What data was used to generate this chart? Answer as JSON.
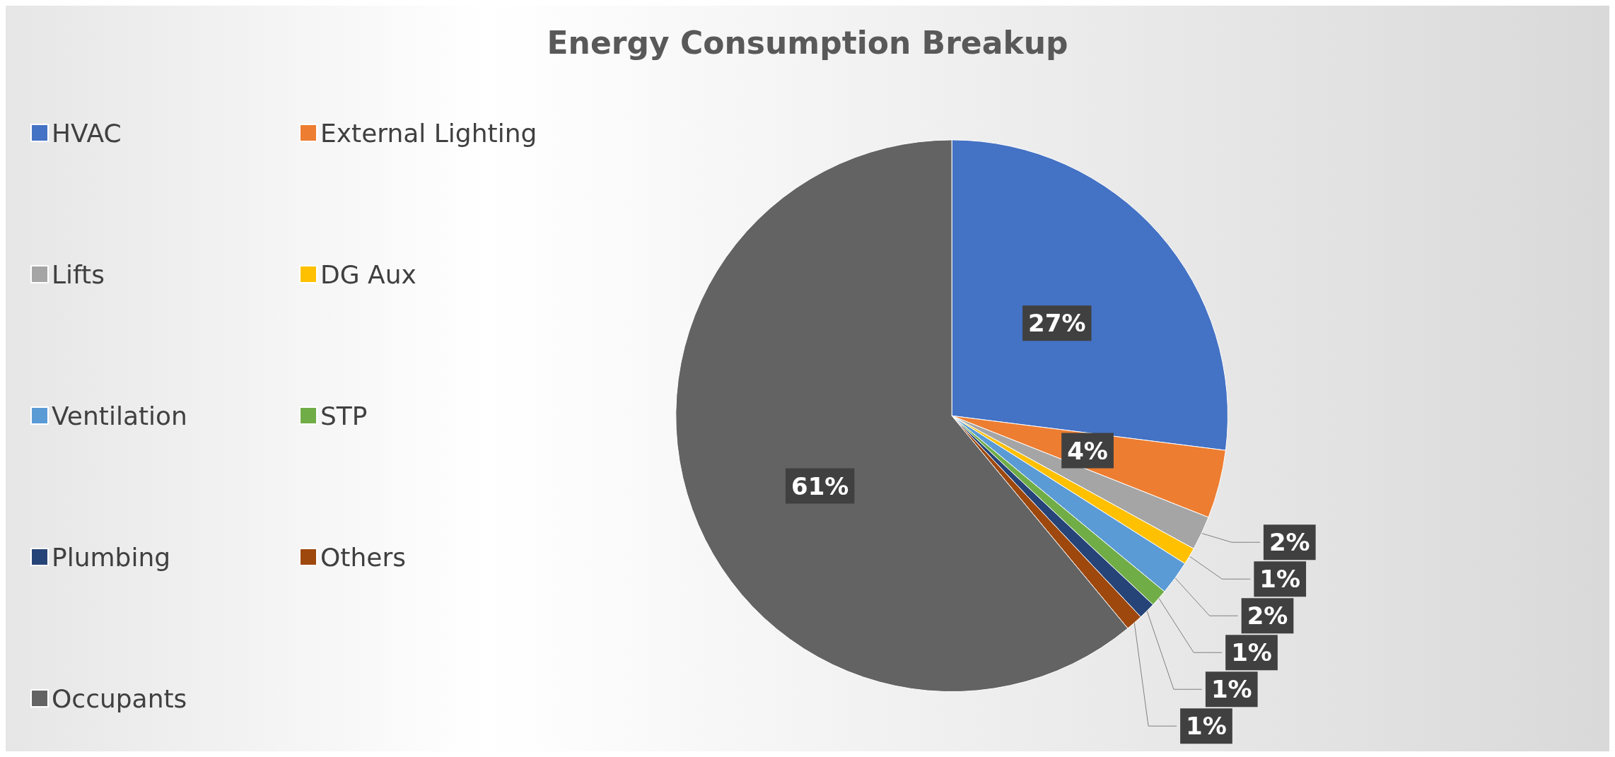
{
  "chart_data": {
    "type": "pie",
    "title": "Energy Consumption Breakup",
    "categories": [
      "HVAC",
      "External Lighting",
      "Lifts",
      "DG Aux",
      "Ventilation",
      "STP",
      "Plumbing",
      "Others",
      "Occupants"
    ],
    "values": [
      27,
      4,
      2,
      1,
      2,
      1,
      1,
      1,
      61
    ],
    "colors": [
      "#4472c4",
      "#ed7d31",
      "#a5a5a5",
      "#ffc000",
      "#5b9bd5",
      "#70ad47",
      "#264478",
      "#9e480e",
      "#636363"
    ],
    "value_labels": [
      "27%",
      "4%",
      "2%",
      "1%",
      "2%",
      "1%",
      "1%",
      "1%",
      "61%"
    ],
    "legend": "left"
  }
}
